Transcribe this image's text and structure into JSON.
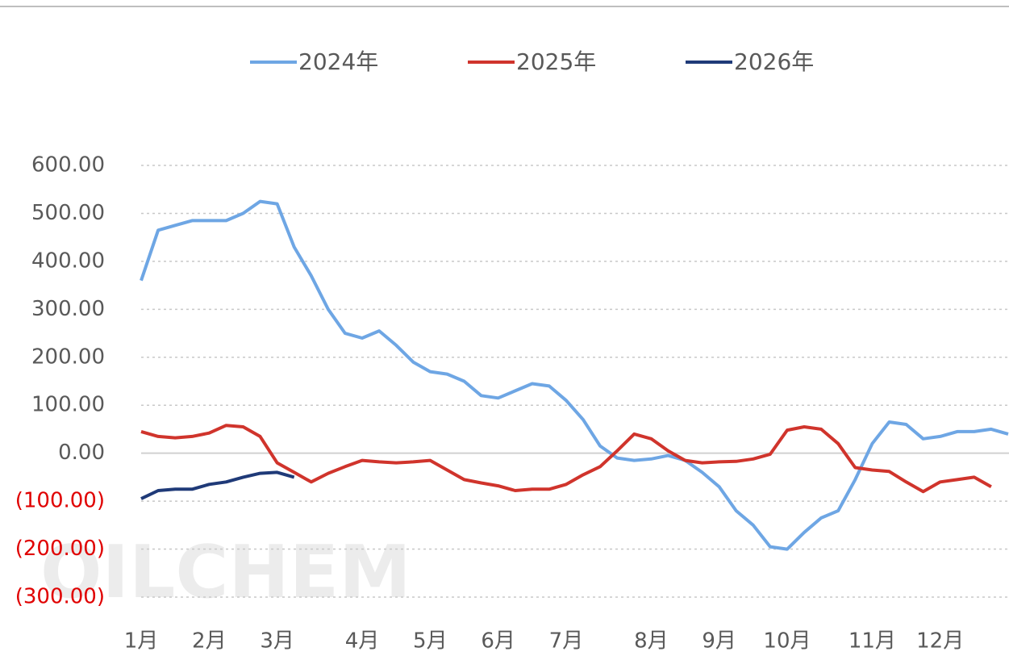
{
  "chart_data": {
    "type": "line",
    "watermark": "OILCHEM",
    "categories": [
      "1月",
      null,
      null,
      null,
      "2月",
      null,
      null,
      null,
      "3月",
      null,
      null,
      null,
      null,
      "4月",
      null,
      null,
      null,
      "5月",
      null,
      null,
      null,
      "6月",
      null,
      null,
      null,
      "7月",
      null,
      null,
      null,
      null,
      "8月",
      null,
      null,
      null,
      "9月",
      null,
      null,
      null,
      "10月",
      null,
      null,
      null,
      null,
      "11月",
      null,
      null,
      null,
      "12月",
      null,
      null,
      null,
      null
    ],
    "series": [
      {
        "name": "2024年",
        "color": "#6ea6e4",
        "values": [
          360,
          465,
          475,
          485,
          485,
          485,
          500,
          525,
          520,
          430,
          370,
          300,
          250,
          240,
          255,
          225,
          190,
          170,
          165,
          150,
          120,
          115,
          130,
          145,
          140,
          110,
          70,
          15,
          -10,
          -15,
          -12,
          -5,
          -15,
          -40,
          -70,
          -120,
          -150,
          -195,
          -200,
          -165,
          -135,
          -120,
          -55,
          20,
          65,
          60,
          30,
          35,
          45,
          45,
          50,
          40
        ]
      },
      {
        "name": "2025年",
        "color": "#d0342c",
        "values": [
          45,
          35,
          32,
          35,
          42,
          58,
          55,
          35,
          -20,
          -40,
          -60,
          -42,
          -28,
          -15,
          -18,
          -20,
          -18,
          -15,
          -35,
          -55,
          -62,
          -68,
          -78,
          -75,
          -75,
          -65,
          -45,
          -28,
          5,
          40,
          30,
          5,
          -15,
          -20,
          -18,
          -17,
          -12,
          -2,
          48,
          55,
          50,
          20,
          -30,
          -35,
          -38,
          -60,
          -80,
          -60,
          -55,
          -50,
          -70,
          null
        ]
      },
      {
        "name": "2026年",
        "color": "#1f3a78",
        "values": [
          -95,
          -78,
          -75,
          -75,
          -65,
          -60,
          -50,
          -42,
          -40,
          -50,
          null,
          null,
          null,
          null,
          null,
          null,
          null,
          null,
          null,
          null,
          null,
          null,
          null,
          null,
          null,
          null,
          null,
          null,
          null,
          null,
          null,
          null,
          null,
          null,
          null,
          null,
          null,
          null,
          null,
          null,
          null,
          null,
          null,
          null,
          null,
          null,
          null,
          null,
          null,
          null,
          null,
          null
        ]
      }
    ],
    "ylim": [
      -300,
      600
    ],
    "yticks": [
      {
        "value": 600,
        "label": "600.00"
      },
      {
        "value": 500,
        "label": "500.00"
      },
      {
        "value": 400,
        "label": "400.00"
      },
      {
        "value": 300,
        "label": "300.00"
      },
      {
        "value": 200,
        "label": "200.00"
      },
      {
        "value": 100,
        "label": "100.00"
      },
      {
        "value": 0,
        "label": "0.00"
      },
      {
        "value": -100,
        "label": "(100.00)"
      },
      {
        "value": -200,
        "label": "(200.00)"
      },
      {
        "value": -300,
        "label": "(300.00)"
      }
    ],
    "grid": true,
    "legend": "top",
    "tick_label_color": "#595959",
    "negative_label_color": "#e00000"
  }
}
